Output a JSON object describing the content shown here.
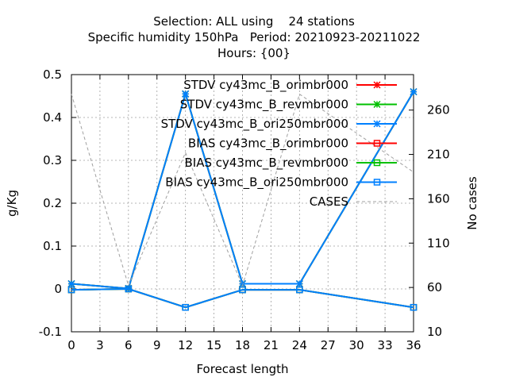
{
  "title": {
    "line1": "Selection: ALL using    24 stations",
    "line2": "Specific humidity 150hPa   Period: 20210923-20211022",
    "line3": "Hours: {00}"
  },
  "chart_data": {
    "type": "line",
    "xlabel": "Forecast length",
    "ylabel": "g/Kg",
    "y2label": "No cases",
    "xlim": [
      0,
      36
    ],
    "ylim": [
      -0.1,
      0.5
    ],
    "y2lim": [
      10,
      300
    ],
    "xticks": [
      0,
      3,
      6,
      9,
      12,
      15,
      18,
      21,
      24,
      27,
      30,
      33,
      36
    ],
    "yticks": [
      -0.1,
      0,
      0.1,
      0.2,
      0.3,
      0.4,
      0.5
    ],
    "y2ticks": [
      10,
      60,
      110,
      160,
      210,
      260
    ],
    "grid": true,
    "legend_position": "top-right",
    "x": [
      0,
      6,
      12,
      18,
      24,
      36
    ],
    "series": [
      {
        "name": "STDV cy43mc_B_orimbr000",
        "color": "#ff0000",
        "marker": "star",
        "axis": "y",
        "values": [
          0.012,
          0.001,
          0.455,
          0.012,
          0.012,
          0.46
        ]
      },
      {
        "name": "STDV cy43mc_B_revmbr000",
        "color": "#00c000",
        "marker": "star",
        "axis": "y",
        "values": [
          0.012,
          0.001,
          0.455,
          0.012,
          0.012,
          0.46
        ]
      },
      {
        "name": "STDV cy43mc_B_ori250mbr000",
        "color": "#0080ff",
        "marker": "star",
        "axis": "y",
        "values": [
          0.012,
          0.001,
          0.455,
          0.012,
          0.012,
          0.46
        ]
      },
      {
        "name": "BIAS cy43mc_B_orimbr000",
        "color": "#ff0000",
        "marker": "square",
        "axis": "y",
        "values": [
          -0.002,
          0.0,
          -0.043,
          -0.002,
          -0.002,
          -0.043
        ]
      },
      {
        "name": "BIAS cy43mc_B_revmbr000",
        "color": "#00c000",
        "marker": "square",
        "axis": "y",
        "values": [
          -0.002,
          0.0,
          -0.043,
          -0.002,
          -0.002,
          -0.043
        ]
      },
      {
        "name": "BIAS cy43mc_B_ori250mbr000",
        "color": "#0080ff",
        "marker": "square",
        "axis": "y",
        "values": [
          -0.002,
          0.0,
          -0.043,
          -0.002,
          -0.002,
          -0.043
        ]
      },
      {
        "name": "CASES",
        "color": "#a0a0a0",
        "marker": "none",
        "dashed": true,
        "axis": "y2",
        "values": [
          278,
          62,
          212,
          62,
          278,
          190
        ]
      }
    ]
  }
}
